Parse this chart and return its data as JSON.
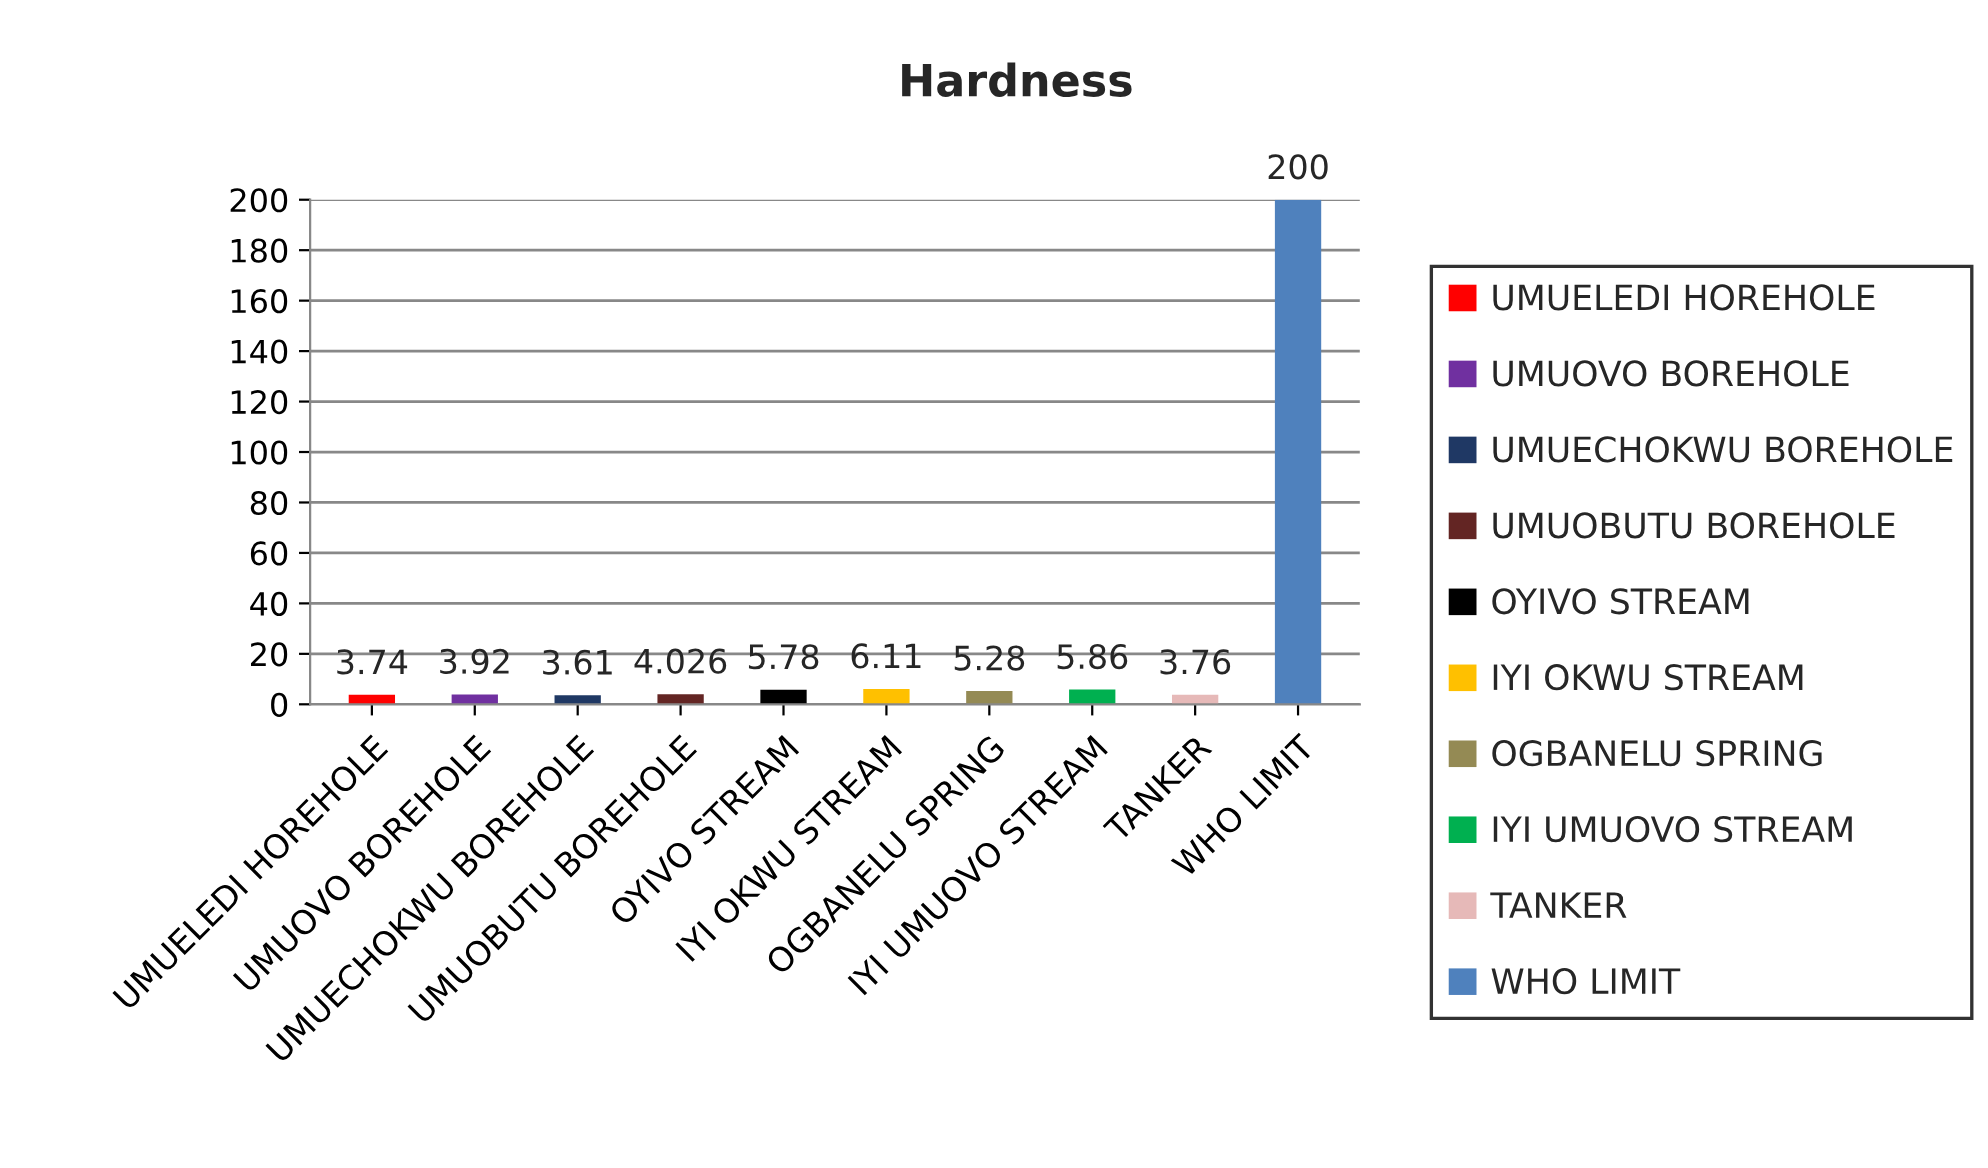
{
  "chart_data": {
    "type": "bar",
    "title": "Hardness",
    "stacked": true,
    "categories": [
      "UMUELEDI HOREHOLE",
      "UMUOVO BOREHOLE",
      "UMUECHOKWU BOREHOLE",
      "UMUOBUTU BOREHOLE",
      "OYIVO STREAM",
      "IYI OKWU STREAM",
      "OGBANELU SPRING",
      "IYI UMUOVO STREAM",
      "TANKER",
      "WHO LIMIT"
    ],
    "series": [
      {
        "name": "UMUELEDI HOREHOLE",
        "color": "#ff0000",
        "values": [
          3.74,
          null,
          null,
          null,
          null,
          null,
          null,
          null,
          null,
          null
        ]
      },
      {
        "name": "UMUOVO BOREHOLE",
        "color": "#7030a0",
        "values": [
          null,
          3.92,
          null,
          null,
          null,
          null,
          null,
          null,
          null,
          null
        ]
      },
      {
        "name": "UMUECHOKWU BOREHOLE",
        "color": "#1f3864",
        "values": [
          null,
          null,
          3.61,
          null,
          null,
          null,
          null,
          null,
          null,
          null
        ]
      },
      {
        "name": "UMUOBUTU BOREHOLE",
        "color": "#632523",
        "values": [
          null,
          null,
          null,
          4.026,
          null,
          null,
          null,
          null,
          null,
          null
        ]
      },
      {
        "name": "OYIVO STREAM",
        "color": "#000000",
        "values": [
          null,
          null,
          null,
          null,
          5.78,
          null,
          null,
          null,
          null,
          null
        ]
      },
      {
        "name": "IYI OKWU STREAM",
        "color": "#ffc000",
        "values": [
          null,
          null,
          null,
          null,
          null,
          6.11,
          null,
          null,
          null,
          null
        ]
      },
      {
        "name": "OGBANELU SPRING",
        "color": "#948a54",
        "values": [
          null,
          null,
          null,
          null,
          null,
          null,
          5.28,
          null,
          null,
          null
        ]
      },
      {
        "name": "IYI UMUOVO STREAM",
        "color": "#00b050",
        "values": [
          null,
          null,
          null,
          null,
          null,
          null,
          null,
          5.86,
          null,
          null
        ]
      },
      {
        "name": "TANKER",
        "color": "#e6b9b8",
        "values": [
          null,
          null,
          null,
          null,
          null,
          null,
          null,
          null,
          3.76,
          null
        ]
      },
      {
        "name": "WHO LIMIT",
        "color": "#4f81bd",
        "values": [
          null,
          null,
          null,
          null,
          null,
          null,
          null,
          null,
          null,
          200
        ]
      }
    ],
    "ylim": [
      0,
      200
    ],
    "yticks": [
      0,
      20,
      40,
      60,
      80,
      100,
      120,
      140,
      160,
      180,
      200
    ],
    "grid": "y",
    "legend": "right",
    "data_labels": true
  }
}
